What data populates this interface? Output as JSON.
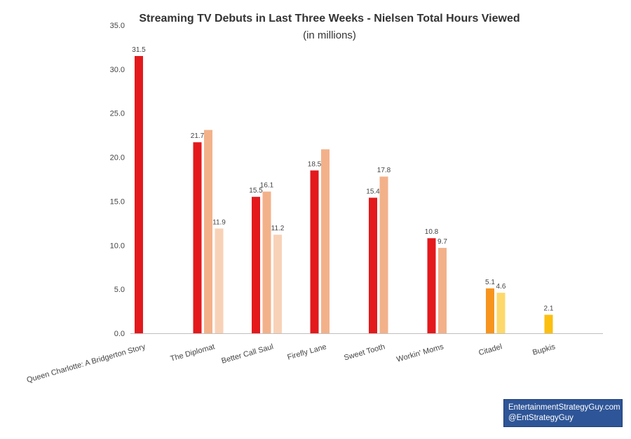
{
  "chart_data": {
    "type": "bar",
    "title": "Streaming TV Debuts in Last Three Weeks - Nielsen Total Hours Viewed",
    "subtitle": "(in millions)",
    "xlabel": "",
    "ylabel": "",
    "ylim": [
      0,
      35
    ],
    "yticks": [
      "0.0",
      "5.0",
      "10.0",
      "15.0",
      "20.0",
      "25.0",
      "30.0",
      "35.0"
    ],
    "grid": false,
    "legend": "none",
    "categories": [
      "Queen Charlotte: A Bridgerton Story",
      "The Diplomat",
      "Better Call Saul",
      "Firefly Lane",
      "Sweet Tooth",
      "Workin' Moms",
      "Citadel",
      "Bupkis"
    ],
    "groups": [
      {
        "category": "Queen Charlotte: A Bridgerton Story",
        "bars": [
          {
            "value": 31.5,
            "label": "31.5",
            "color": "#e3191c"
          }
        ]
      },
      {
        "category": "The Diplomat",
        "bars": [
          {
            "value": 21.7,
            "label": "21.7",
            "color": "#e3191c"
          },
          {
            "value": 23.1,
            "label": "",
            "color": "#f3b18a"
          },
          {
            "value": 11.9,
            "label": "11.9",
            "color": "#f8d2b7"
          }
        ]
      },
      {
        "category": "Better Call Saul",
        "bars": [
          {
            "value": 15.5,
            "label": "15.5",
            "color": "#e3191c"
          },
          {
            "value": 16.1,
            "label": "16.1",
            "color": "#f3b18a"
          },
          {
            "value": 11.2,
            "label": "11.2",
            "color": "#f8d2b7"
          }
        ]
      },
      {
        "category": "Firefly Lane",
        "bars": [
          {
            "value": 18.5,
            "label": "18.5",
            "color": "#e3191c"
          },
          {
            "value": 20.9,
            "label": "",
            "color": "#f3b18a"
          }
        ]
      },
      {
        "category": "Sweet Tooth",
        "bars": [
          {
            "value": 15.4,
            "label": "15.4",
            "color": "#e3191c"
          },
          {
            "value": 17.8,
            "label": "17.8",
            "color": "#f3b18a"
          }
        ]
      },
      {
        "category": "Workin' Moms",
        "bars": [
          {
            "value": 10.8,
            "label": "10.8",
            "color": "#e3191c"
          },
          {
            "value": 9.7,
            "label": "9.7",
            "color": "#f3b18a"
          }
        ]
      },
      {
        "category": "Citadel",
        "bars": [
          {
            "value": 5.1,
            "label": "5.1",
            "color": "#f7941d"
          },
          {
            "value": 4.6,
            "label": "4.6",
            "color": "#fdd86b"
          }
        ]
      },
      {
        "category": "Bupkis",
        "bars": [
          {
            "value": 2.1,
            "label": "2.1",
            "color": "#fbbf10"
          }
        ]
      }
    ]
  },
  "credit": {
    "line1": "EntertainmentStrategyGuy.com",
    "line2": "@EntStrategyGuy"
  }
}
